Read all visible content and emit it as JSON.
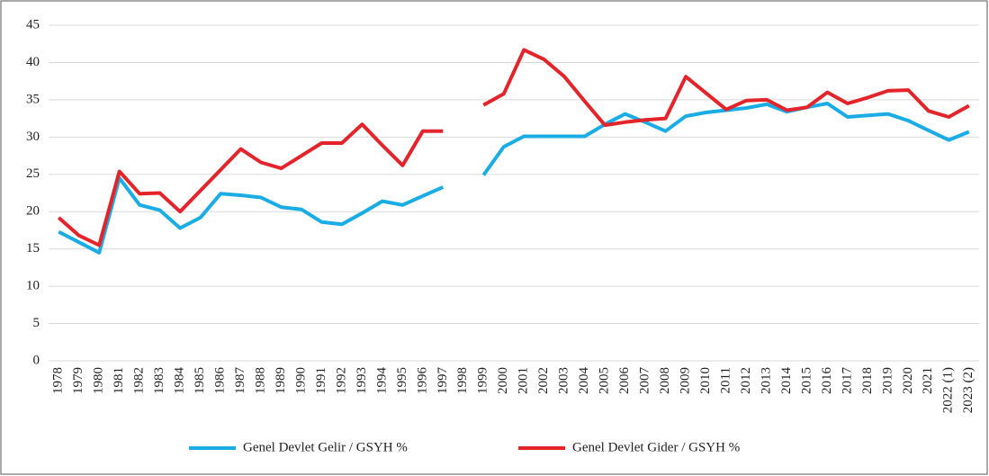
{
  "chart_data": {
    "type": "line",
    "categories": [
      "1978",
      "1979",
      "1980",
      "1981",
      "1982",
      "1983",
      "1984",
      "1985",
      "1986",
      "1987",
      "1988",
      "1989",
      "1990",
      "1991",
      "1992",
      "1993",
      "1994",
      "1995",
      "1996",
      "1997",
      "1998",
      "1999",
      "2000",
      "2001",
      "2002",
      "2003",
      "2004",
      "2005",
      "2006",
      "2007",
      "2008",
      "2009",
      "2010",
      "2011",
      "2012",
      "2013",
      "2014",
      "2015",
      "2016",
      "2017",
      "2018",
      "2019",
      "2020",
      "2021",
      "2022 (1)",
      "2023 (2)"
    ],
    "series": [
      {
        "name": "Genel Devlet Gelir / GSYH %",
        "color": "#1aace4",
        "values": [
          17.3,
          15.9,
          14.5,
          24.5,
          20.9,
          20.2,
          17.8,
          19.2,
          22.4,
          22.2,
          21.9,
          20.6,
          20.3,
          18.6,
          18.3,
          19.8,
          21.4,
          20.9,
          22.1,
          23.3,
          null,
          24.9,
          28.7,
          30.1,
          30.1,
          30.1,
          30.1,
          31.7,
          33.1,
          32.0,
          30.8,
          32.8,
          33.3,
          33.6,
          33.9,
          34.4,
          33.4,
          34.0,
          34.5,
          32.7,
          32.9,
          33.1,
          32.2,
          30.9,
          29.6,
          30.7
        ]
      },
      {
        "name": "Genel Devlet Gider / GSYH %",
        "color": "#e3242b",
        "values": [
          19.2,
          16.8,
          15.5,
          25.4,
          22.4,
          22.5,
          20.0,
          22.8,
          25.6,
          28.4,
          26.6,
          25.8,
          27.5,
          29.2,
          29.2,
          31.7,
          28.9,
          26.2,
          30.8,
          30.8,
          null,
          34.3,
          35.8,
          41.7,
          40.4,
          38.1,
          34.8,
          31.6,
          32.0,
          32.3,
          32.5,
          38.1,
          35.9,
          33.7,
          34.9,
          35.0,
          33.6,
          34.0,
          36.0,
          34.5,
          35.3,
          36.2,
          36.3,
          33.5,
          32.7,
          34.2
        ]
      }
    ],
    "ylim": [
      0,
      45
    ],
    "yticks": [
      0,
      5,
      10,
      15,
      20,
      25,
      30,
      35,
      40,
      45
    ],
    "grid": true,
    "legend": "bottom"
  }
}
